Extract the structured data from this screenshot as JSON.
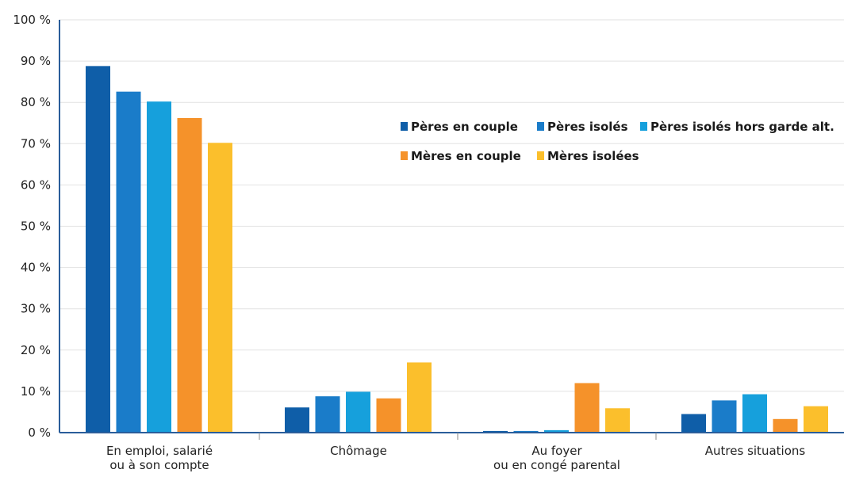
{
  "chart_data": {
    "type": "bar",
    "categories": [
      [
        "En emploi, salarié",
        "ou à son compte"
      ],
      [
        "Chômage"
      ],
      [
        "Au foyer",
        "ou en congé parental"
      ],
      [
        "Autres situations"
      ]
    ],
    "series": [
      {
        "name": "Pères en couple",
        "color": "#0f5ea8",
        "values": [
          88.8,
          6.1,
          0.4,
          4.5
        ]
      },
      {
        "name": "Pères isolés",
        "color": "#1a7cc9",
        "values": [
          82.6,
          8.8,
          0.4,
          7.8
        ]
      },
      {
        "name": "Pères isolés hors garde alt.",
        "color": "#16a0dc",
        "values": [
          80.2,
          9.9,
          0.6,
          9.3
        ]
      },
      {
        "name": "Mères en couple",
        "color": "#f5922a",
        "values": [
          76.2,
          8.3,
          12.0,
          3.3
        ]
      },
      {
        "name": "Mères isolées",
        "color": "#fbbf2c",
        "values": [
          70.2,
          17.0,
          5.9,
          6.4
        ]
      }
    ],
    "y_ticks": [
      "0 %",
      "10 %",
      "20 %",
      "30 %",
      "40 %",
      "50 %",
      "60 %",
      "70 %",
      "80 %",
      "90 %",
      "100 %"
    ],
    "ylim": [
      0,
      100
    ],
    "grid": true,
    "legend_position": "top-right",
    "colors": {
      "axis": "#2a5d9a",
      "grid": "#e2e2e2",
      "category_divider": "#8a8a8a"
    }
  }
}
